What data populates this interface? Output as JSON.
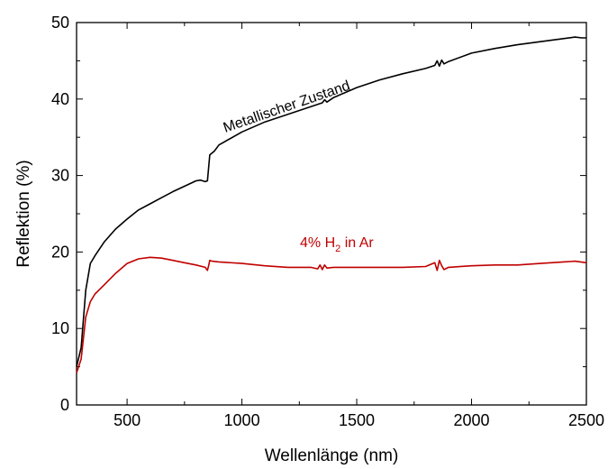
{
  "chart_data": {
    "type": "line",
    "xlabel": "Wellenlänge (nm)",
    "ylabel": "Reflektion (%)",
    "xlim": [
      280,
      2500
    ],
    "ylim": [
      0,
      50
    ],
    "xticks": [
      500,
      1000,
      1500,
      2000,
      2500
    ],
    "yticks": [
      0,
      10,
      20,
      30,
      40,
      50
    ],
    "grid": false,
    "series": [
      {
        "name": "Metallischer Zustand",
        "color": "#000000",
        "x": [
          280,
          300,
          320,
          340,
          360,
          400,
          450,
          500,
          550,
          600,
          650,
          700,
          750,
          800,
          820,
          840,
          850,
          855,
          860,
          880,
          900,
          1000,
          1100,
          1200,
          1300,
          1350,
          1360,
          1370,
          1400,
          1500,
          1600,
          1700,
          1800,
          1840,
          1850,
          1860,
          1870,
          1880,
          1900,
          2000,
          2100,
          2200,
          2300,
          2400,
          2450,
          2480,
          2500
        ],
        "values": [
          5.0,
          7.5,
          15.0,
          18.5,
          19.5,
          21.3,
          23.0,
          24.3,
          25.5,
          26.3,
          27.1,
          27.9,
          28.6,
          29.3,
          29.4,
          29.2,
          29.3,
          31.0,
          32.7,
          33.2,
          34.0,
          35.7,
          37.0,
          38.0,
          39.0,
          39.5,
          39.9,
          39.6,
          40.2,
          41.5,
          42.5,
          43.3,
          44.0,
          44.4,
          45.0,
          44.3,
          45.1,
          44.6,
          44.9,
          46.0,
          46.6,
          47.1,
          47.5,
          47.9,
          48.1,
          48.0,
          48.0
        ]
      },
      {
        "name": "4% H2 in Ar",
        "color": "#c00000",
        "x": [
          280,
          300,
          320,
          340,
          360,
          400,
          450,
          500,
          550,
          600,
          650,
          700,
          750,
          800,
          840,
          850,
          855,
          860,
          870,
          900,
          1000,
          1100,
          1200,
          1300,
          1330,
          1340,
          1350,
          1360,
          1370,
          1400,
          1500,
          1600,
          1700,
          1800,
          1840,
          1850,
          1860,
          1870,
          1880,
          1900,
          2000,
          2100,
          2200,
          2300,
          2400,
          2450,
          2500
        ],
        "values": [
          4.2,
          6.0,
          11.5,
          13.5,
          14.5,
          15.7,
          17.2,
          18.5,
          19.1,
          19.3,
          19.2,
          18.9,
          18.6,
          18.3,
          18.0,
          17.6,
          18.2,
          18.9,
          18.8,
          18.7,
          18.5,
          18.2,
          18.0,
          18.0,
          17.8,
          18.3,
          17.7,
          18.3,
          17.9,
          18.0,
          18.0,
          18.0,
          18.0,
          18.1,
          18.6,
          17.6,
          18.9,
          18.2,
          17.7,
          18.0,
          18.2,
          18.3,
          18.3,
          18.5,
          18.7,
          18.8,
          18.6
        ]
      }
    ],
    "annotations": [
      {
        "text": "Metallischer Zustand",
        "series": 0
      },
      {
        "parts": [
          "4% H",
          "2",
          " in Ar"
        ],
        "series": 1
      }
    ]
  }
}
